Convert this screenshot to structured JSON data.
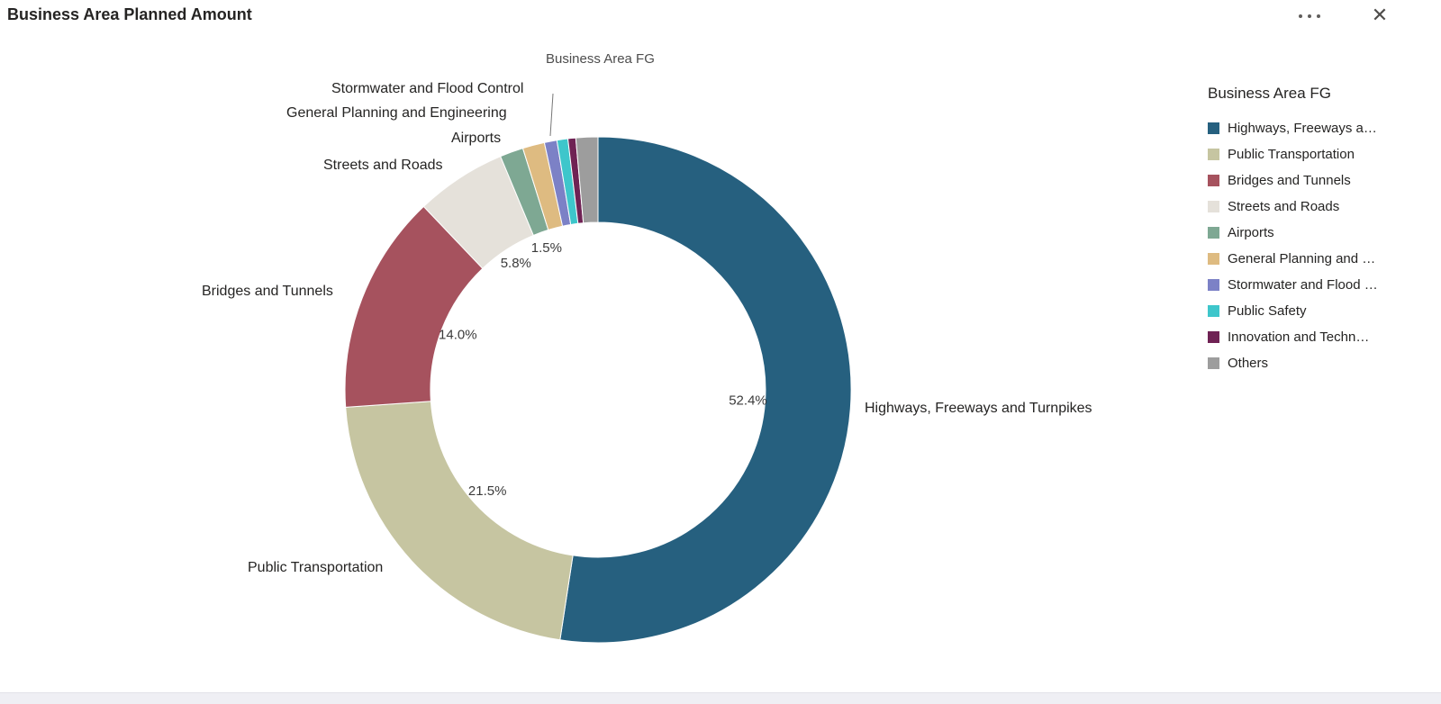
{
  "header": {
    "title": "Business Area Planned Amount",
    "close_icon": "✕"
  },
  "chart_data": {
    "type": "pie",
    "subtype": "donut",
    "title": "Business Area Planned Amount",
    "category_field": "Business Area FG",
    "categories": [
      "Highways, Freeways and Turnpikes",
      "Public Transportation",
      "Bridges and Tunnels",
      "Streets and Roads",
      "Airports",
      "General Planning and Engineering",
      "Stormwater and Flood Control",
      "Public Safety",
      "Innovation and Technology",
      "Others"
    ],
    "values_percent": [
      52.4,
      21.5,
      14.0,
      5.8,
      1.5,
      1.4,
      0.8,
      0.7,
      0.5,
      1.4
    ],
    "colors": [
      "#26607f",
      "#c6c5a1",
      "#a6525e",
      "#e5e1da",
      "#7ea893",
      "#debb81",
      "#7c81c6",
      "#3ec6cb",
      "#6f2254",
      "#9d9d9d"
    ],
    "label_min_percent": 1.5,
    "percent_labels_shown": [
      "52.4%",
      "21.5%",
      "14.0%",
      "5.8%",
      "1.5%"
    ],
    "legend_position": "right",
    "grid": false,
    "inner_radius_ratio": 0.662
  },
  "legend": {
    "title": "Business Area FG",
    "items": [
      {
        "label": "Highways, Freeways a…"
      },
      {
        "label": "Public Transportation"
      },
      {
        "label": "Bridges and Tunnels"
      },
      {
        "label": "Streets and Roads"
      },
      {
        "label": "Airports"
      },
      {
        "label": "General Planning and …"
      },
      {
        "label": "Stormwater and Flood …"
      },
      {
        "label": "Public Safety"
      },
      {
        "label": "Innovation and Techn…"
      },
      {
        "label": "Others"
      }
    ]
  }
}
